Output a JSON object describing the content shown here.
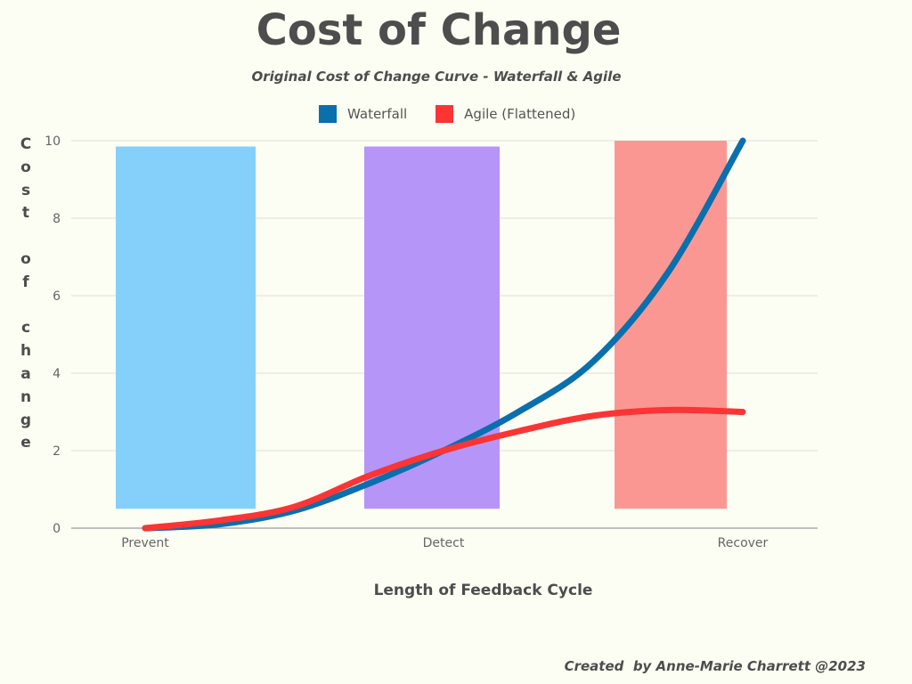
{
  "chart_data": {
    "type": "line",
    "title": "Cost of Change",
    "subtitle": "Original Cost of Change Curve - Waterfall & Agile",
    "xlabel": "Length of Feedback Cycle",
    "ylabel": "Cost of change",
    "ylabel_display": "C\no\ns\nt\n \no\nf\n \nc\nh\na\nn\ng\ne",
    "categories": [
      "Prevent",
      "Detect",
      "Recover"
    ],
    "ylim": [
      0,
      10
    ],
    "yticks": [
      "0",
      "2",
      "4",
      "6",
      "8",
      "10"
    ],
    "grid": true,
    "legend_position": "top",
    "series": [
      {
        "name": "Waterfall",
        "color": "#0a6fad",
        "x": [
          0,
          0.25,
          0.5,
          0.75,
          1.0,
          1.25,
          1.5,
          1.75,
          2.0
        ],
        "values": [
          0,
          0.1,
          0.45,
          1.15,
          2.0,
          3.0,
          4.3,
          6.6,
          10.0
        ]
      },
      {
        "name": "Agile (Flattened)",
        "color": "#fb3434",
        "x": [
          0,
          0.25,
          0.5,
          0.75,
          1.0,
          1.25,
          1.5,
          1.75,
          2.0
        ],
        "values": [
          0,
          0.2,
          0.55,
          1.35,
          2.0,
          2.5,
          2.9,
          3.05,
          3.0
        ]
      }
    ],
    "bands": [
      {
        "category": "Prevent",
        "color": "#84d0fb",
        "low": 0.5,
        "high": 9.85
      },
      {
        "category": "Detect",
        "color": "#b595f8",
        "low": 0.5,
        "high": 9.85
      },
      {
        "category": "Recover",
        "color": "#fb9793",
        "low": 0.5,
        "high": 10.0
      }
    ]
  },
  "credit": "Created  by Anne-Marie Charrett @2023"
}
